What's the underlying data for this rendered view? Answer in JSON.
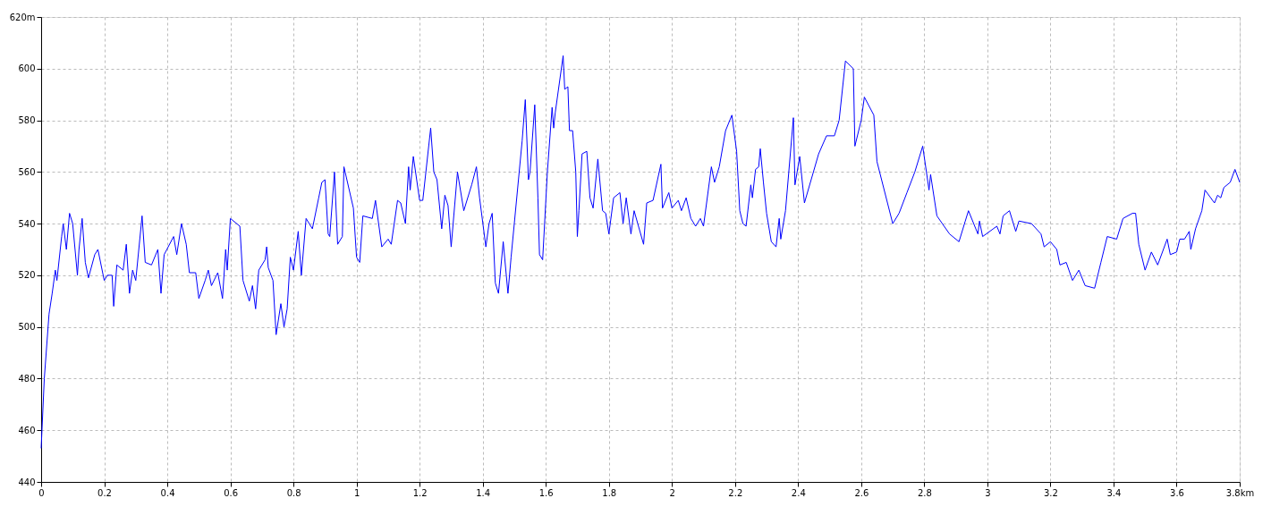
{
  "chart_data": {
    "type": "line",
    "grid": true,
    "line_style": "solid",
    "marker": "none",
    "xlim": [
      0,
      3.8
    ],
    "ylim": [
      440,
      620
    ],
    "xticks": [
      0,
      0.2,
      0.4,
      0.6,
      0.8,
      1,
      1.2,
      1.4,
      1.6,
      1.8,
      2,
      2.2,
      2.4,
      2.6,
      2.8,
      3,
      3.2,
      3.4,
      3.6,
      {
        "value": 3.8,
        "label": "3.8km"
      }
    ],
    "yticks": [
      440,
      460,
      480,
      500,
      520,
      540,
      560,
      580,
      600,
      {
        "value": 620,
        "label": "620m"
      }
    ],
    "series": [
      {
        "color": "#0000ff",
        "x": [
          0,
          0.01,
          0.025,
          0.035,
          0.045,
          0.05,
          0.065,
          0.07,
          0.08,
          0.09,
          0.1,
          0.115,
          0.12,
          0.13,
          0.14,
          0.15,
          0.17,
          0.18,
          0.2,
          0.21,
          0.225,
          0.23,
          0.24,
          0.26,
          0.27,
          0.28,
          0.29,
          0.3,
          0.32,
          0.33,
          0.35,
          0.37,
          0.38,
          0.39,
          0.42,
          0.43,
          0.445,
          0.46,
          0.47,
          0.49,
          0.5,
          0.52,
          0.53,
          0.54,
          0.56,
          0.575,
          0.585,
          0.59,
          0.6,
          0.63,
          0.64,
          0.66,
          0.67,
          0.68,
          0.69,
          0.71,
          0.715,
          0.72,
          0.735,
          0.745,
          0.76,
          0.77,
          0.78,
          0.79,
          0.8,
          0.815,
          0.825,
          0.84,
          0.86,
          0.88,
          0.89,
          0.9,
          0.91,
          0.915,
          0.93,
          0.94,
          0.955,
          0.96,
          0.99,
          1.0,
          1.01,
          1.02,
          1.05,
          1.06,
          1.08,
          1.1,
          1.11,
          1.13,
          1.14,
          1.155,
          1.165,
          1.17,
          1.18,
          1.2,
          1.21,
          1.235,
          1.245,
          1.255,
          1.27,
          1.28,
          1.29,
          1.3,
          1.32,
          1.34,
          1.365,
          1.38,
          1.39,
          1.41,
          1.42,
          1.43,
          1.44,
          1.45,
          1.465,
          1.48,
          1.49,
          1.525,
          1.535,
          1.545,
          1.55,
          1.565,
          1.575,
          1.58,
          1.59,
          1.605,
          1.62,
          1.625,
          1.63,
          1.655,
          1.66,
          1.67,
          1.675,
          1.685,
          1.695,
          1.7,
          1.705,
          1.715,
          1.73,
          1.74,
          1.75,
          1.765,
          1.78,
          1.79,
          1.8,
          1.815,
          1.835,
          1.845,
          1.855,
          1.87,
          1.88,
          1.91,
          1.92,
          1.94,
          1.965,
          1.97,
          1.99,
          2.0,
          2.02,
          2.03,
          2.045,
          2.06,
          2.075,
          2.09,
          2.1,
          2.125,
          2.135,
          2.15,
          2.17,
          2.19,
          2.205,
          2.215,
          2.225,
          2.235,
          2.25,
          2.255,
          2.265,
          2.275,
          2.28,
          2.29,
          2.3,
          2.315,
          2.33,
          2.34,
          2.345,
          2.36,
          2.385,
          2.39,
          2.405,
          2.42,
          2.465,
          2.49,
          2.515,
          2.53,
          2.55,
          2.575,
          2.58,
          2.6,
          2.61,
          2.64,
          2.65,
          2.7,
          2.72,
          2.745,
          2.77,
          2.795,
          2.815,
          2.82,
          2.84,
          2.88,
          2.91,
          2.93,
          2.94,
          2.97,
          2.975,
          2.985,
          3.03,
          3.04,
          3.05,
          3.07,
          3.09,
          3.1,
          3.14,
          3.17,
          3.18,
          3.2,
          3.22,
          3.23,
          3.25,
          3.27,
          3.29,
          3.31,
          3.34,
          3.36,
          3.38,
          3.41,
          3.43,
          3.46,
          3.47,
          3.48,
          3.5,
          3.52,
          3.54,
          3.57,
          3.58,
          3.6,
          3.61,
          3.625,
          3.64,
          3.645,
          3.66,
          3.68,
          3.69,
          3.72,
          3.73,
          3.74,
          3.75,
          3.77,
          3.785,
          3.8
        ],
        "values": [
          453,
          480,
          505,
          513,
          522,
          518,
          535,
          540,
          530,
          544,
          540,
          520,
          530,
          542,
          525,
          519,
          528,
          530,
          518,
          520,
          520,
          508,
          524,
          522,
          532,
          513,
          522,
          518,
          543,
          525,
          524,
          530,
          513,
          528,
          535,
          528,
          540,
          532,
          521,
          521,
          511,
          518,
          522,
          516,
          521,
          511,
          530,
          522,
          542,
          539,
          518,
          510,
          516,
          507,
          522,
          526,
          531,
          523,
          518,
          497,
          509,
          500,
          507,
          527,
          522,
          537,
          520,
          542,
          538,
          550,
          556,
          557,
          536,
          535,
          560,
          532,
          535,
          562,
          546,
          527,
          525,
          543,
          542,
          549,
          531,
          534,
          532,
          549,
          548,
          540,
          562,
          553,
          566,
          549,
          549,
          577,
          560,
          557,
          538,
          551,
          547,
          531,
          560,
          545,
          555,
          562,
          550,
          531,
          540,
          544,
          517,
          513,
          533,
          513,
          527,
          572,
          588,
          557,
          560,
          586,
          550,
          528,
          526,
          560,
          585,
          577,
          583,
          605,
          592,
          593,
          576,
          576,
          560,
          535,
          545,
          567,
          568,
          550,
          546,
          565,
          545,
          544,
          536,
          550,
          552,
          540,
          550,
          536,
          545,
          532,
          548,
          549,
          563,
          546,
          552,
          546,
          549,
          545,
          550,
          542,
          539,
          542,
          539,
          562,
          556,
          562,
          576,
          582,
          568,
          545,
          540,
          539,
          555,
          550,
          561,
          562,
          569,
          556,
          544,
          533,
          531,
          542,
          534,
          545,
          581,
          555,
          566,
          548,
          567,
          574,
          574,
          580,
          603,
          600,
          570,
          580,
          589,
          582,
          564,
          540,
          544,
          552,
          560,
          570,
          553,
          559,
          543,
          536,
          533,
          541,
          545,
          536,
          541,
          535,
          539,
          536,
          543,
          545,
          537,
          541,
          540,
          536,
          531,
          533,
          530,
          524,
          525,
          518,
          522,
          516,
          515,
          525,
          535,
          534,
          542,
          544,
          544,
          532,
          522,
          529,
          524,
          534,
          528,
          529,
          534,
          534,
          537,
          530,
          538,
          545,
          553,
          548,
          551,
          550,
          554,
          556,
          561,
          556
        ]
      }
    ]
  }
}
